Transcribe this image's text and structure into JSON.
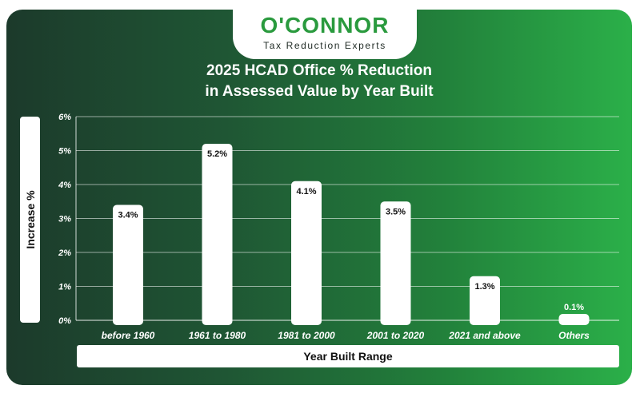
{
  "brand": {
    "name": "O'CONNOR",
    "tagline": "Tax Reduction Experts"
  },
  "chart_data": {
    "type": "bar",
    "title_line1": "2025 HCAD Office % Reduction",
    "title_line2": "in Assessed Value by Year Built",
    "xlabel": "Year Built Range",
    "ylabel": "Increase %",
    "categories": [
      "before 1960",
      "1961 to 1980",
      "1981 to 2000",
      "2001 to 2020",
      "2021 and above",
      "Others"
    ],
    "values": [
      3.4,
      5.2,
      4.1,
      3.5,
      1.3,
      0.1
    ],
    "data_labels": [
      "3.4%",
      "5.2%",
      "4.1%",
      "3.5%",
      "1.3%",
      "0.1%"
    ],
    "y_ticks": [
      0,
      1,
      2,
      3,
      4,
      5,
      6
    ],
    "y_tick_labels": [
      "0%",
      "1%",
      "2%",
      "3%",
      "4%",
      "5%",
      "6%"
    ],
    "ylim": [
      0,
      6
    ],
    "grid": true,
    "legend": "none",
    "colors": {
      "bar": "#ffffff",
      "grid": "#ffffff",
      "accent": "#2a9a3e"
    }
  }
}
